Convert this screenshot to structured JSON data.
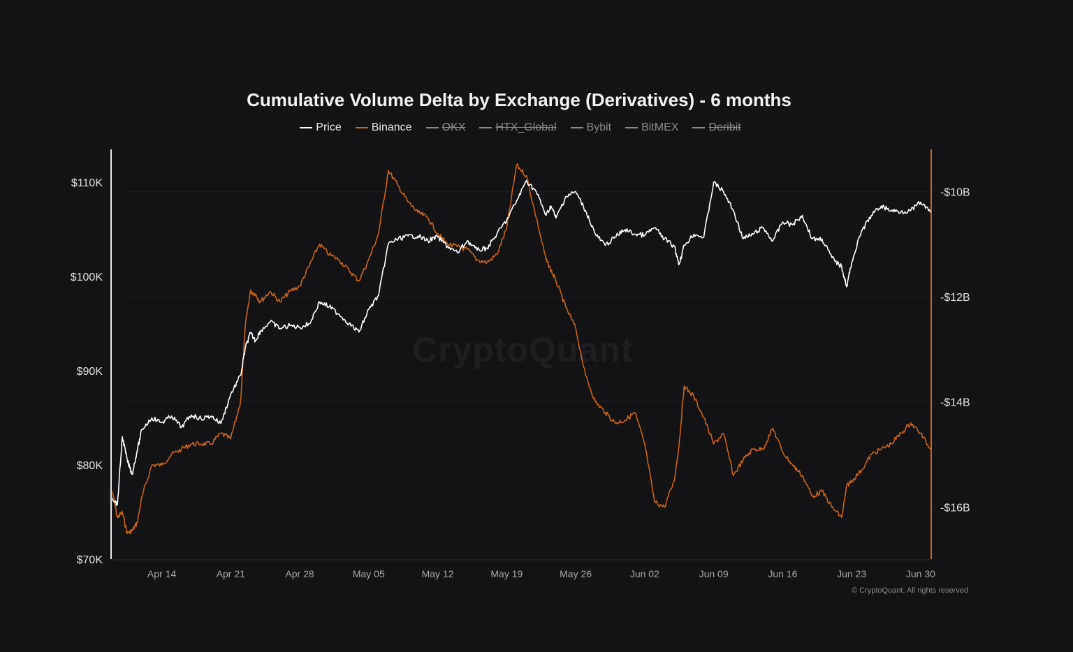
{
  "chart_data": {
    "type": "line",
    "title": "Cumulative Volume Delta by Exchange (Derivatives) - 6 months",
    "legend": [
      {
        "name": "Price",
        "color": "#ffffff",
        "enabled": true
      },
      {
        "name": "Binance",
        "color": "#c8641e",
        "enabled": true
      },
      {
        "name": "OKX",
        "color": "#8a8a8a",
        "enabled": false
      },
      {
        "name": "HTX_Global",
        "color": "#8a8a8a",
        "enabled": false
      },
      {
        "name": "Bybit",
        "color": "#8a8a8a",
        "enabled": true
      },
      {
        "name": "BitMEX",
        "color": "#8a8a8a",
        "enabled": true
      },
      {
        "name": "Deribit",
        "color": "#8a8a8a",
        "enabled": false
      }
    ],
    "x_ticks": [
      "Apr 14",
      "Apr 21",
      "Apr 28",
      "May 05",
      "May 12",
      "May 19",
      "May 26",
      "Jun 02",
      "Jun 09",
      "Jun 16",
      "Jun 23",
      "Jun 30"
    ],
    "x_tick_days": [
      5,
      12,
      19,
      26,
      33,
      40,
      47,
      54,
      61,
      68,
      75,
      82
    ],
    "x_range_days": [
      0,
      83
    ],
    "y_left": {
      "ticks": [
        "$70K",
        "$80K",
        "$90K",
        "$100K",
        "$110K"
      ],
      "tick_values": [
        70000,
        80000,
        90000,
        100000,
        110000
      ],
      "range": [
        70000,
        113500
      ]
    },
    "y_right": {
      "ticks": [
        "-$10B",
        "-$12B",
        "-$14B",
        "-$16B"
      ],
      "tick_values": [
        -10,
        -12,
        -14,
        -16
      ],
      "range": [
        -16.99,
        -9.2
      ],
      "unit": "B"
    },
    "series": [
      {
        "name": "Price",
        "axis": "left",
        "color": "#ffffff",
        "x": [
          0,
          0.5,
          1,
          1.5,
          2,
          2.5,
          3,
          4,
          5,
          6,
          7,
          8,
          9,
          10,
          11,
          12,
          13,
          13.5,
          14,
          14.5,
          15,
          16,
          17,
          18,
          19,
          20,
          21,
          22,
          23,
          24,
          25,
          26,
          27,
          28,
          29,
          30,
          31,
          32,
          33,
          34,
          35,
          36,
          37,
          38,
          39,
          40,
          41,
          42,
          43,
          44,
          44.5,
          45,
          46,
          47,
          48,
          49,
          50,
          51,
          52,
          53,
          54,
          55,
          56,
          57,
          57.5,
          58,
          59,
          60,
          61,
          62,
          63,
          64,
          65,
          66,
          67,
          68,
          69,
          70,
          71,
          72,
          73,
          74,
          74.5,
          75,
          76,
          77,
          78,
          79,
          80,
          81,
          82,
          83
        ],
        "y": [
          76500,
          75800,
          83000,
          80500,
          79000,
          81500,
          83800,
          85000,
          84500,
          85200,
          84000,
          85300,
          84900,
          85200,
          84400,
          87500,
          89500,
          92500,
          94000,
          93200,
          94200,
          95200,
          94500,
          94800,
          94600,
          95000,
          97300,
          96800,
          96000,
          95000,
          94100,
          96500,
          98000,
          103500,
          104000,
          104300,
          104300,
          103800,
          104200,
          103200,
          102500,
          103800,
          102800,
          103000,
          104500,
          106000,
          108000,
          110200,
          109000,
          106500,
          107500,
          106200,
          108500,
          109000,
          107000,
          104500,
          103300,
          104200,
          105000,
          104500,
          104400,
          105200,
          104000,
          103200,
          101300,
          103300,
          104500,
          104200,
          110000,
          109000,
          107000,
          104000,
          104500,
          105200,
          103800,
          105800,
          105500,
          106500,
          104000,
          104000,
          102000,
          101000,
          98900,
          101500,
          104800,
          106500,
          107500,
          107000,
          106900,
          107000,
          107900,
          106800
        ]
      },
      {
        "name": "Binance",
        "axis": "right",
        "color": "#c8641e",
        "x": [
          0,
          0.5,
          1,
          1.5,
          2,
          2.5,
          3,
          4,
          5,
          6,
          7,
          8,
          9,
          10,
          11,
          12,
          13,
          13.5,
          14,
          14.5,
          15,
          16,
          17,
          18,
          19,
          20,
          21,
          22,
          23,
          24,
          25,
          26,
          27,
          28,
          29,
          30,
          31,
          32,
          33,
          34,
          35,
          36,
          37,
          38,
          39,
          40,
          41,
          42,
          43,
          44,
          44.5,
          45,
          46,
          47,
          48,
          49,
          50,
          51,
          52,
          53,
          54,
          55,
          56,
          57,
          57.5,
          58,
          59,
          60,
          61,
          62,
          63,
          64,
          65,
          66,
          67,
          68,
          69,
          70,
          71,
          72,
          73,
          74,
          74.5,
          75,
          76,
          77,
          78,
          79,
          80,
          81,
          82,
          83
        ],
        "y": [
          -15.7,
          -16.2,
          -16.1,
          -16.5,
          -16.45,
          -16.3,
          -15.8,
          -15.2,
          -15.2,
          -15.0,
          -14.9,
          -14.8,
          -14.8,
          -14.8,
          -14.6,
          -14.7,
          -14.0,
          -12.5,
          -11.9,
          -11.95,
          -12.1,
          -11.9,
          -12.1,
          -11.9,
          -11.8,
          -11.4,
          -11.0,
          -11.2,
          -11.3,
          -11.5,
          -11.7,
          -11.3,
          -10.8,
          -9.6,
          -9.9,
          -10.2,
          -10.4,
          -10.5,
          -10.8,
          -11.0,
          -11.05,
          -11.1,
          -11.3,
          -11.35,
          -11.2,
          -10.7,
          -9.5,
          -9.7,
          -10.5,
          -11.3,
          -11.5,
          -11.7,
          -12.2,
          -12.6,
          -13.5,
          -14.0,
          -14.2,
          -14.4,
          -14.35,
          -14.2,
          -14.8,
          -15.9,
          -16.0,
          -15.5,
          -14.8,
          -13.7,
          -13.9,
          -14.3,
          -14.8,
          -14.6,
          -15.4,
          -15.1,
          -14.9,
          -14.9,
          -14.5,
          -14.95,
          -15.2,
          -15.4,
          -15.8,
          -15.7,
          -16.0,
          -16.2,
          -15.6,
          -15.5,
          -15.3,
          -15.0,
          -14.9,
          -14.8,
          -14.6,
          -14.4,
          -14.6,
          -14.9
        ]
      }
    ],
    "grid": false,
    "legend_placement": "top-center",
    "watermark": "CryptoQuant",
    "copyright": "© CryptoQuant. All rights reserved"
  }
}
